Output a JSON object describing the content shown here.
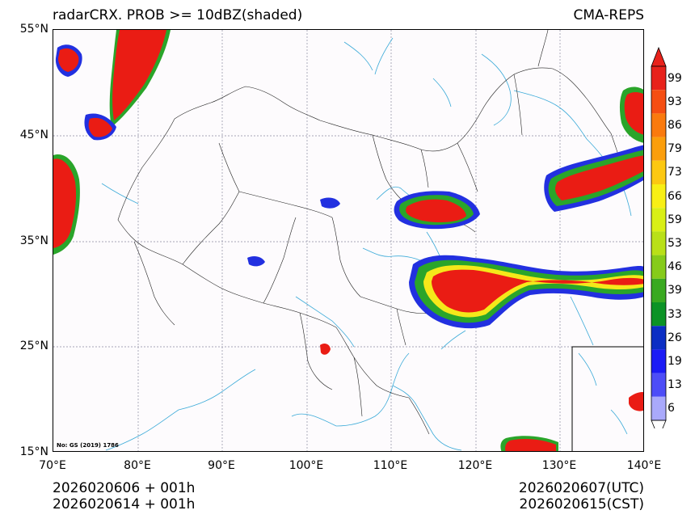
{
  "title_left": "radarCRX. PROB >= 10dBZ(shaded)",
  "title_right": "CMA-REPS",
  "lat_ticks": [
    "55°N",
    "45°N",
    "35°N",
    "25°N",
    "15°N"
  ],
  "lon_ticks": [
    "70°E",
    "80°E",
    "90°E",
    "100°E",
    "110°E",
    "120°E",
    "130°E",
    "140°E"
  ],
  "footer_left": {
    "line1": "2026020606  +  001h",
    "line2": "2026020614  +  001h"
  },
  "footer_right": {
    "line1": "2026020607(UTC)",
    "line2": "2026020615(CST)"
  },
  "credit": "No: GS (2019) 1786",
  "colorbar": {
    "levels": [
      "99",
      "93",
      "86",
      "79",
      "73",
      "66",
      "59",
      "53",
      "46",
      "39",
      "33",
      "26",
      "19",
      "13",
      "6"
    ],
    "colors": [
      "#e8221b",
      "#f54e12",
      "#fa7a0e",
      "#fb9e0c",
      "#fcc812",
      "#f8ef15",
      "#d9ef16",
      "#b9e018",
      "#86cb1a",
      "#39a920",
      "#0c9326",
      "#0b2ec4",
      "#1b1bf5",
      "#4d4df7",
      "#a9a9fb"
    ],
    "top_arrow_color": "#e8221b"
  },
  "colors": {
    "rain_core": "#ea1c14",
    "rain_edge_green": "#2aa52a",
    "rain_edge_blue": "#2230e0",
    "rain_mid_yellow": "#f5e81a",
    "coast": "#3aaad8",
    "border": "#222222",
    "grid": "#8a8aa0"
  }
}
